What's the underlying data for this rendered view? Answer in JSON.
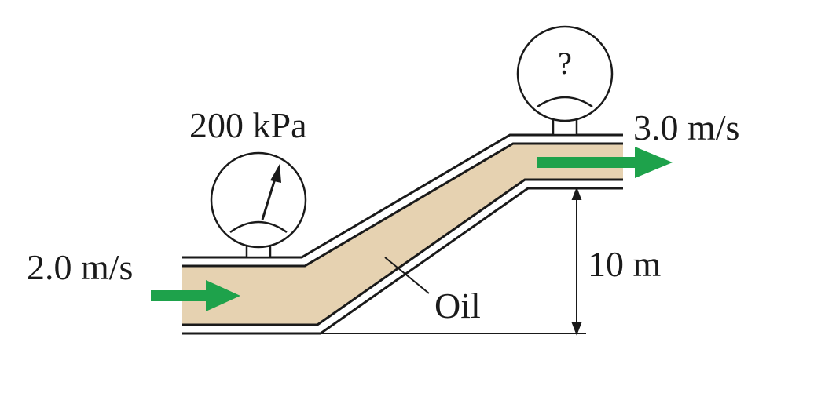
{
  "labels": {
    "left_pressure": "200 kPa",
    "right_gauge": "?",
    "inlet_speed": "2.0 m/s",
    "outlet_speed": "3.0 m/s",
    "height": "10 m",
    "fluid": "Oil"
  },
  "colors": {
    "oil": "#e6d2b1",
    "arrow": "#1ea24b",
    "line": "#1a1a1a"
  }
}
